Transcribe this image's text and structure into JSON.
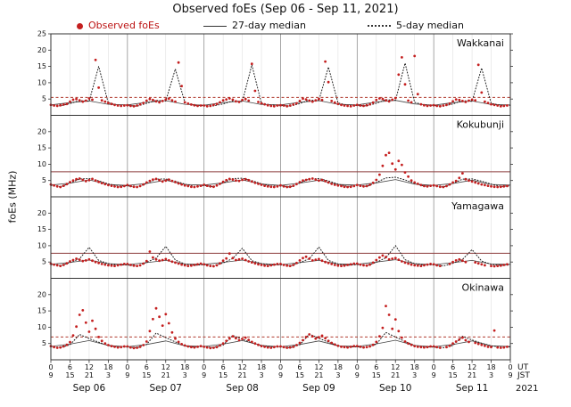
{
  "title": "Observed foEs (Sep 06 - Sep 11, 2021)",
  "chart_data": {
    "type": "scatter",
    "title": "Observed foEs (Sep 06 - Sep 11, 2021)",
    "ylabel": "foEs (MHz)",
    "ylim": [
      0,
      25
    ],
    "grid": "vertical-time-gridlines",
    "legend_position": "top",
    "colors": {
      "points": "#c41f1f",
      "median5": "#1a1a1a",
      "median27": "#444444",
      "grid_day": "#909090",
      "grid_6h": "#e0e0e0",
      "border": "#333333"
    },
    "legend": [
      {
        "label": "Observed foEs",
        "marker": "dot",
        "color": "#c41f1f",
        "text_color": "#bb1111"
      },
      {
        "label": "27-day median",
        "marker": "solid-line",
        "color": "#333333",
        "text_color": "#111111"
      },
      {
        "label": "5-day median",
        "marker": "dotted-line",
        "color": "#333333",
        "text_color": "#111111"
      }
    ],
    "x_axis": {
      "span_hours": 144,
      "tick_step_hours": 6,
      "ut_cycle": [
        "0",
        "6",
        "12",
        "18"
      ],
      "jst_cycle": [
        "9",
        "15",
        "21",
        "3"
      ],
      "end_ut": "0",
      "end_jst": "9",
      "day_labels": [
        "Sep 06",
        "Sep 07",
        "Sep 08",
        "Sep 09",
        "Sep 10",
        "Sep 11"
      ],
      "corner": {
        "ut": "UT",
        "jst": "JST",
        "year": "2021"
      }
    },
    "panels": [
      {
        "station": "Wakkanai",
        "yticks": [
          5,
          10,
          15,
          20,
          25
        ],
        "threshold": {
          "value": 5.5,
          "style": "dashed",
          "color": "#b03a2e"
        },
        "scatter_step_hours": 1,
        "scatter": [
          3.2,
          3.0,
          2.9,
          3.1,
          3.3,
          3.5,
          4.2,
          4.8,
          5.0,
          4.6,
          4.2,
          4.5,
          5.2,
          4.8,
          17.0,
          8.5,
          4.6,
          4.2,
          3.8,
          3.5,
          3.2,
          3.0,
          2.9,
          3.0,
          3.1,
          2.9,
          2.8,
          3.0,
          3.4,
          3.8,
          4.5,
          5.0,
          4.7,
          4.3,
          4.0,
          4.4,
          4.9,
          5.1,
          4.6,
          4.2,
          16.2,
          9.0,
          4.0,
          3.6,
          3.3,
          3.1,
          2.9,
          3.0,
          3.0,
          2.8,
          2.9,
          3.2,
          3.5,
          4.0,
          4.6,
          4.9,
          5.2,
          4.8,
          4.3,
          4.1,
          4.7,
          5.0,
          4.5,
          15.8,
          7.5,
          4.1,
          3.7,
          3.4,
          3.1,
          2.9,
          2.8,
          3.0,
          3.1,
          3.0,
          2.8,
          3.0,
          3.3,
          3.7,
          4.4,
          5.1,
          4.9,
          4.5,
          4.2,
          4.6,
          5.0,
          4.7,
          16.5,
          10.2,
          4.4,
          3.9,
          3.5,
          3.2,
          3.0,
          2.9,
          2.8,
          3.0,
          3.2,
          3.0,
          2.9,
          3.1,
          3.4,
          3.9,
          4.7,
          5.2,
          5.0,
          4.6,
          4.3,
          4.8,
          5.3,
          12.5,
          17.8,
          9.5,
          4.5,
          4.0,
          18.2,
          6.5,
          3.4,
          3.1,
          2.9,
          3.0,
          3.1,
          2.9,
          2.8,
          3.0,
          3.2,
          3.6,
          4.3,
          4.9,
          4.7,
          4.4,
          4.1,
          4.5,
          4.8,
          4.6,
          15.5,
          7.0,
          4.2,
          3.8,
          3.4,
          3.2,
          3.0,
          2.8,
          2.9,
          3.0
        ],
        "median27": {
          "step_hours": 6,
          "values": [
            3.2,
            3.9,
            4.4,
            3.4,
            3.2,
            4.0,
            4.5,
            3.4,
            3.1,
            3.9,
            4.4,
            3.3,
            3.2,
            4.0,
            4.5,
            3.4,
            3.2,
            4.1,
            4.6,
            3.5,
            3.1,
            3.9,
            4.4,
            3.3,
            3.2
          ]
        },
        "median5": {
          "step_hours": 3,
          "values": [
            3.0,
            2.9,
            3.6,
            4.5,
            4.3,
            15.0,
            3.8,
            3.2,
            3.1,
            2.8,
            3.7,
            4.6,
            4.4,
            14.2,
            3.9,
            3.1,
            3.0,
            2.9,
            3.5,
            4.4,
            4.2,
            15.5,
            3.7,
            3.2,
            3.1,
            2.8,
            3.6,
            4.7,
            4.5,
            14.8,
            3.8,
            3.1,
            3.0,
            2.9,
            3.7,
            4.8,
            4.6,
            16.0,
            4.0,
            3.2,
            3.1,
            2.8,
            3.5,
            4.5,
            4.3,
            14.5,
            3.7,
            3.1,
            3.0
          ]
        }
      },
      {
        "station": "Kokubunji",
        "yticks": [
          5,
          10,
          15,
          20
        ],
        "threshold": {
          "value": 7.7,
          "style": "solid",
          "color": "#8b3a3a"
        },
        "scatter_step_hours": 1,
        "scatter": [
          3.8,
          3.5,
          3.2,
          3.0,
          3.4,
          3.9,
          4.5,
          5.0,
          5.4,
          5.6,
          5.2,
          4.8,
          5.1,
          5.5,
          5.0,
          4.6,
          4.2,
          3.9,
          3.6,
          3.4,
          3.2,
          3.0,
          3.1,
          3.3,
          3.6,
          3.3,
          3.1,
          3.0,
          3.3,
          3.8,
          4.4,
          4.9,
          5.3,
          5.5,
          5.1,
          4.7,
          5.0,
          5.3,
          4.9,
          4.5,
          4.1,
          3.8,
          3.5,
          3.3,
          3.1,
          3.0,
          3.2,
          3.4,
          3.7,
          3.4,
          3.2,
          3.1,
          3.5,
          4.0,
          4.6,
          5.1,
          5.5,
          5.3,
          5.0,
          4.9,
          5.2,
          5.4,
          5.1,
          4.7,
          4.3,
          4.0,
          3.7,
          3.4,
          3.2,
          3.1,
          3.0,
          3.2,
          3.5,
          3.2,
          3.0,
          3.1,
          3.4,
          3.9,
          4.5,
          5.0,
          5.2,
          5.4,
          5.6,
          5.3,
          5.0,
          5.2,
          4.8,
          4.4,
          4.0,
          3.7,
          3.5,
          3.3,
          3.1,
          3.0,
          3.1,
          3.3,
          3.6,
          3.4,
          3.2,
          3.3,
          3.7,
          4.3,
          5.2,
          6.8,
          9.5,
          12.8,
          13.5,
          10.2,
          8.4,
          11.0,
          9.8,
          7.5,
          6.2,
          5.0,
          4.4,
          4.0,
          3.6,
          3.3,
          3.2,
          3.4,
          3.5,
          3.3,
          3.1,
          3.0,
          3.3,
          3.8,
          4.4,
          4.9,
          5.8,
          7.2,
          5.4,
          5.0,
          4.7,
          4.4,
          4.1,
          3.8,
          3.6,
          3.4,
          3.2,
          3.1,
          3.0,
          3.1,
          3.2,
          3.3
        ],
        "median27": {
          "step_hours": 6,
          "values": [
            3.6,
            4.2,
            5.2,
            3.8,
            3.5,
            4.1,
            5.1,
            3.8,
            3.6,
            4.3,
            5.2,
            3.9,
            3.5,
            4.2,
            5.1,
            3.8,
            3.6,
            4.3,
            5.3,
            3.9,
            3.5,
            4.1,
            5.1,
            3.8,
            3.6
          ]
        },
        "median5": {
          "step_hours": 3,
          "values": [
            3.5,
            3.1,
            4.2,
            5.5,
            5.6,
            4.9,
            4.0,
            3.3,
            3.4,
            3.0,
            4.1,
            5.4,
            5.5,
            4.8,
            3.9,
            3.2,
            3.5,
            3.1,
            4.3,
            5.6,
            5.7,
            5.0,
            4.0,
            3.3,
            3.4,
            3.0,
            4.2,
            5.5,
            5.6,
            4.9,
            3.9,
            3.2,
            3.5,
            3.2,
            4.4,
            5.8,
            6.0,
            5.2,
            4.1,
            3.3,
            3.4,
            3.0,
            4.1,
            5.4,
            5.5,
            4.8,
            3.9,
            3.2,
            3.4
          ]
        }
      },
      {
        "station": "Yamagawa",
        "yticks": [
          5,
          10,
          15,
          20
        ],
        "threshold": {
          "value": 7.7,
          "style": "solid",
          "color": "#8b3a3a"
        },
        "scatter_step_hours": 1,
        "scatter": [
          4.5,
          4.2,
          4.0,
          3.8,
          4.1,
          4.6,
          5.2,
          5.6,
          6.0,
          5.7,
          5.3,
          5.5,
          5.8,
          5.4,
          5.0,
          4.7,
          4.4,
          4.2,
          4.0,
          3.9,
          3.8,
          4.0,
          4.2,
          4.4,
          4.4,
          4.1,
          3.9,
          3.8,
          4.0,
          4.5,
          5.3,
          8.2,
          6.4,
          5.8,
          5.4,
          5.6,
          5.9,
          5.5,
          5.1,
          4.8,
          4.5,
          4.2,
          4.0,
          3.8,
          3.9,
          4.1,
          4.3,
          4.5,
          4.3,
          4.0,
          3.8,
          3.7,
          4.0,
          4.6,
          5.4,
          6.1,
          7.6,
          6.2,
          5.6,
          5.8,
          6.0,
          5.6,
          5.2,
          4.9,
          4.6,
          4.3,
          4.1,
          3.9,
          3.8,
          4.0,
          4.2,
          4.4,
          4.4,
          4.1,
          3.9,
          3.8,
          4.1,
          4.7,
          5.5,
          6.2,
          6.6,
          6.0,
          5.5,
          5.7,
          5.9,
          5.4,
          5.0,
          4.7,
          4.4,
          4.1,
          3.9,
          3.8,
          3.9,
          4.1,
          4.3,
          4.5,
          4.5,
          4.2,
          4.0,
          3.9,
          4.2,
          4.8,
          5.6,
          6.4,
          7.0,
          6.5,
          5.8,
          6.0,
          6.2,
          5.7,
          5.2,
          4.8,
          4.5,
          4.2,
          4.0,
          3.9,
          3.8,
          4.0,
          4.2,
          4.4,
          4.3,
          4.0,
          3.8,
          null,
          null,
          4.4,
          5.0,
          5.5,
          5.8,
          5.4,
          5.0,
          null,
          null,
          4.9,
          4.6,
          4.3,
          4.0,
          null,
          3.8,
          3.7,
          3.8,
          3.9,
          4.1,
          4.3
        ],
        "median27": {
          "step_hours": 6,
          "values": [
            4.3,
            4.9,
            5.6,
            4.5,
            4.2,
            4.8,
            5.5,
            4.4,
            4.3,
            4.9,
            5.6,
            4.5,
            4.2,
            4.8,
            5.5,
            4.4,
            4.3,
            5.0,
            5.7,
            4.5,
            4.2,
            4.8,
            5.5,
            4.4,
            4.3
          ]
        },
        "median5": {
          "step_hours": 3,
          "values": [
            4.2,
            3.9,
            4.8,
            6.0,
            9.5,
            5.5,
            4.5,
            4.1,
            4.1,
            3.8,
            4.9,
            6.2,
            9.8,
            5.6,
            4.4,
            4.0,
            4.2,
            3.9,
            4.7,
            6.1,
            9.2,
            5.4,
            4.5,
            4.1,
            4.1,
            3.8,
            4.8,
            6.0,
            9.6,
            5.5,
            4.4,
            4.0,
            4.2,
            3.9,
            4.9,
            6.3,
            10.0,
            5.7,
            4.5,
            4.1,
            4.1,
            3.8,
            4.6,
            5.8,
            8.8,
            5.3,
            4.3,
            4.0,
            4.1
          ]
        }
      },
      {
        "station": "Okinawa",
        "yticks": [
          5,
          10,
          15,
          20
        ],
        "threshold": {
          "value": 7.0,
          "style": "dashed",
          "color": "#b03a2e"
        },
        "scatter_step_hours": 1,
        "scatter": [
          4.2,
          3.9,
          3.7,
          3.8,
          4.1,
          4.6,
          5.4,
          7.5,
          10.2,
          13.8,
          15.2,
          11.4,
          8.6,
          12.0,
          9.5,
          7.0,
          5.8,
          5.0,
          4.5,
          4.2,
          4.0,
          3.8,
          3.9,
          4.1,
          4.1,
          3.8,
          3.6,
          3.7,
          4.0,
          4.5,
          5.6,
          8.8,
          12.5,
          15.8,
          13.2,
          10.5,
          14.0,
          11.2,
          8.4,
          6.5,
          5.5,
          4.8,
          4.4,
          4.1,
          3.9,
          3.8,
          4.0,
          4.2,
          4.0,
          3.8,
          3.6,
          3.7,
          3.9,
          4.4,
          5.0,
          5.8,
          6.5,
          7.2,
          6.6,
          6.0,
          6.4,
          6.8,
          6.1,
          5.5,
          5.0,
          4.6,
          4.2,
          4.0,
          3.8,
          3.7,
          3.9,
          4.1,
          4.1,
          3.9,
          3.7,
          3.8,
          4.0,
          4.5,
          5.2,
          6.0,
          7.0,
          7.8,
          7.2,
          6.5,
          6.9,
          7.4,
          6.6,
          5.8,
          5.2,
          4.7,
          4.3,
          4.0,
          3.9,
          3.8,
          4.0,
          4.2,
          4.2,
          4.0,
          3.8,
          3.9,
          4.1,
          4.6,
          5.5,
          7.2,
          9.8,
          16.5,
          13.8,
          9.5,
          12.4,
          8.8,
          6.8,
          5.6,
          5.0,
          4.6,
          4.2,
          4.0,
          3.9,
          3.8,
          3.9,
          4.1,
          4.1,
          3.9,
          3.7,
          null,
          3.9,
          4.3,
          5.0,
          5.6,
          6.2,
          6.8,
          6.0,
          5.5,
          null,
          5.2,
          4.9,
          4.6,
          4.3,
          4.0,
          3.9,
          9.0,
          3.8,
          3.7,
          3.8,
          4.0
        ],
        "median27": {
          "step_hours": 6,
          "values": [
            4.1,
            4.8,
            5.9,
            4.4,
            4.0,
            4.7,
            5.8,
            4.3,
            4.1,
            4.8,
            5.9,
            4.4,
            4.0,
            4.7,
            5.8,
            4.3,
            4.1,
            4.9,
            6.0,
            4.4,
            4.0,
            4.7,
            5.8,
            4.3,
            4.1
          ]
        },
        "median5": {
          "step_hours": 3,
          "values": [
            4.0,
            3.8,
            4.6,
            7.8,
            6.5,
            5.4,
            4.4,
            4.0,
            3.9,
            3.7,
            4.7,
            8.2,
            6.8,
            5.5,
            4.3,
            3.9,
            4.0,
            3.8,
            4.5,
            7.5,
            6.3,
            5.2,
            4.4,
            4.0,
            3.9,
            3.7,
            4.6,
            7.9,
            6.6,
            5.4,
            4.3,
            3.9,
            4.0,
            3.8,
            4.8,
            8.4,
            7.0,
            5.6,
            4.4,
            4.0,
            3.9,
            3.7,
            4.4,
            7.2,
            6.1,
            5.1,
            4.3,
            3.9,
            4.0
          ]
        }
      }
    ]
  }
}
